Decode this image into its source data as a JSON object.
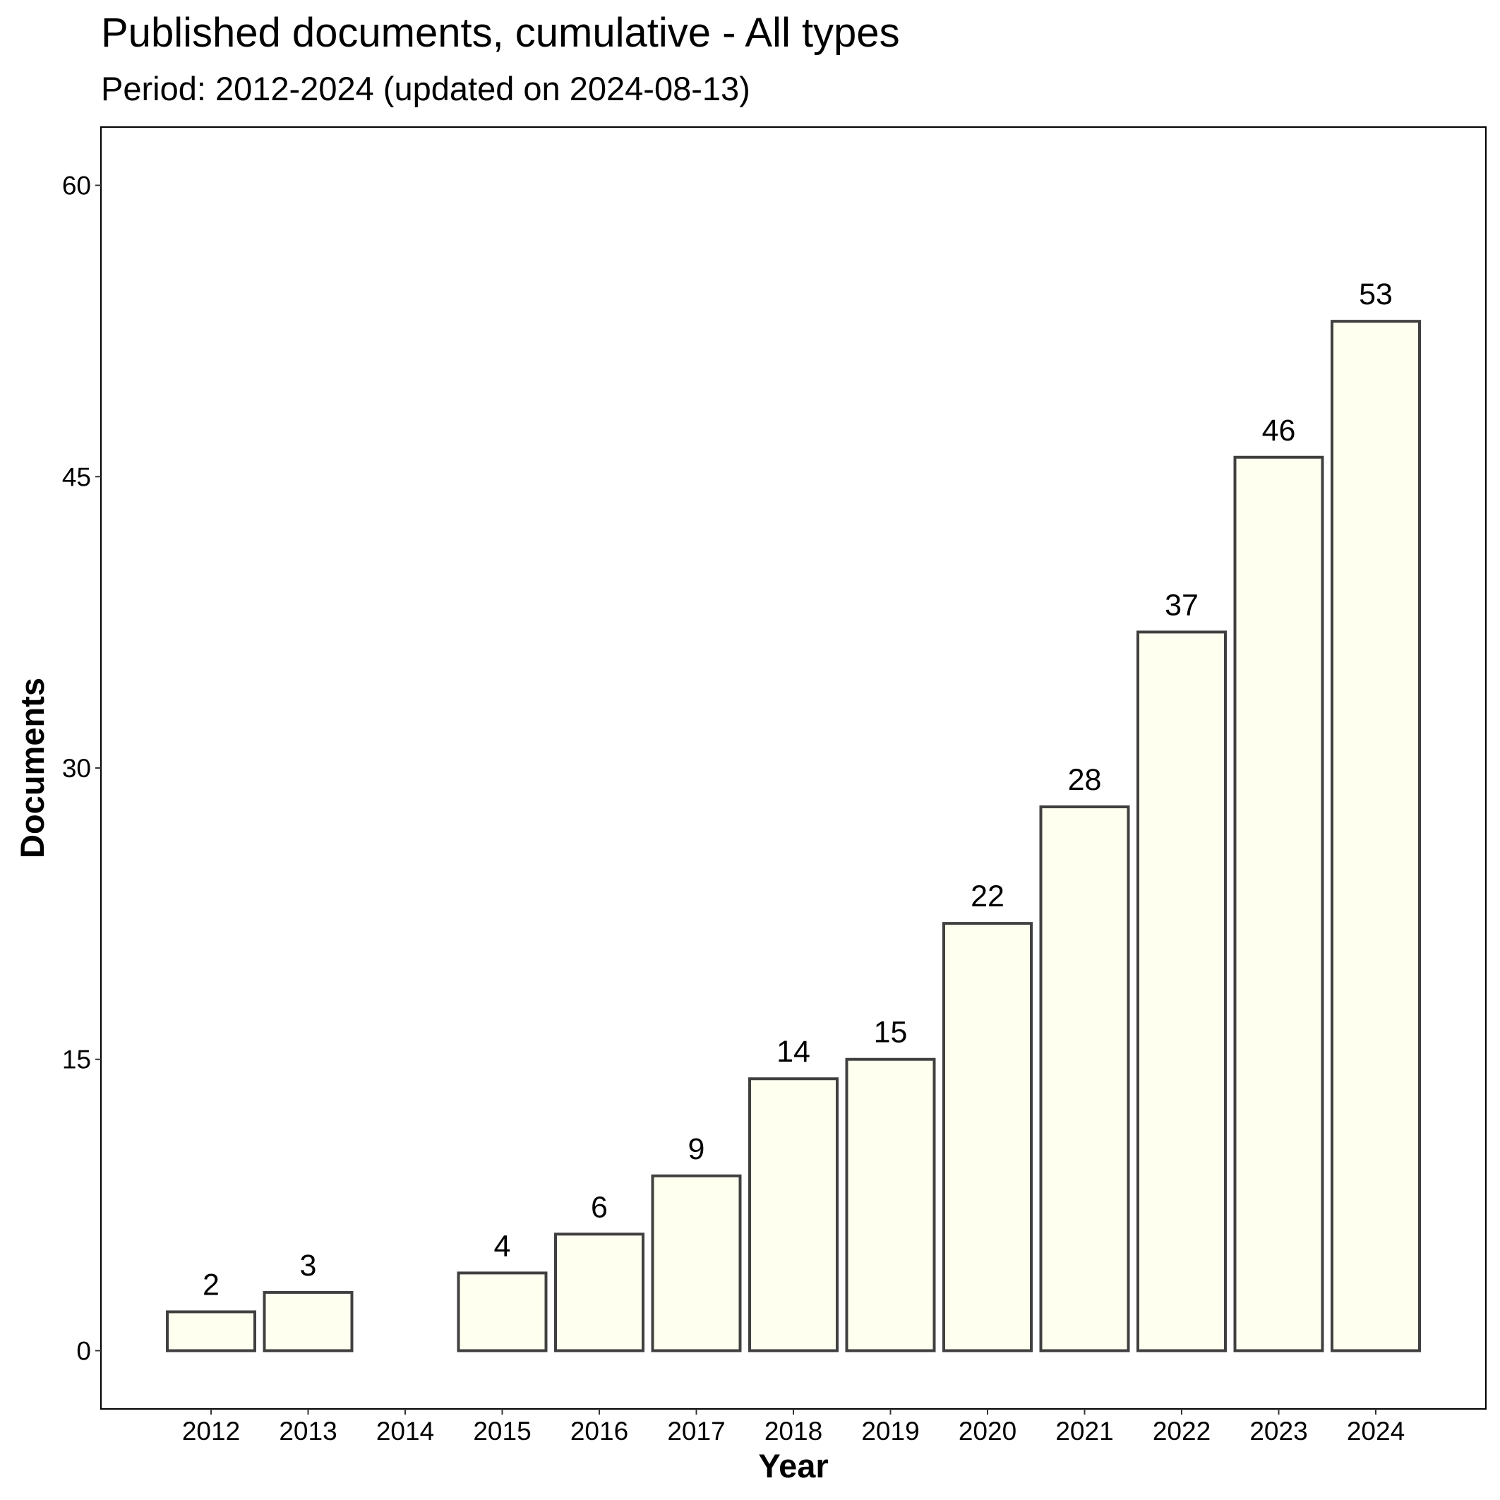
{
  "chart_data": {
    "type": "bar",
    "title": "Published documents, cumulative - All types",
    "subtitle": "Period: 2012-2024 (updated on 2024-08-13)",
    "xlabel": "Year",
    "ylabel": "Documents",
    "categories": [
      "2012",
      "2013",
      "2014",
      "2015",
      "2016",
      "2017",
      "2018",
      "2019",
      "2020",
      "2021",
      "2022",
      "2023",
      "2024"
    ],
    "values": [
      2,
      3,
      null,
      4,
      6,
      9,
      14,
      15,
      22,
      28,
      37,
      46,
      53
    ],
    "ylim": [
      -3,
      63
    ],
    "yticks": [
      0,
      15,
      30,
      45,
      60
    ],
    "grid": false,
    "legend": "none",
    "colors": {
      "bar_fill": "#fffff0",
      "bar_stroke": "#404040",
      "panel_border": "#000000"
    }
  }
}
